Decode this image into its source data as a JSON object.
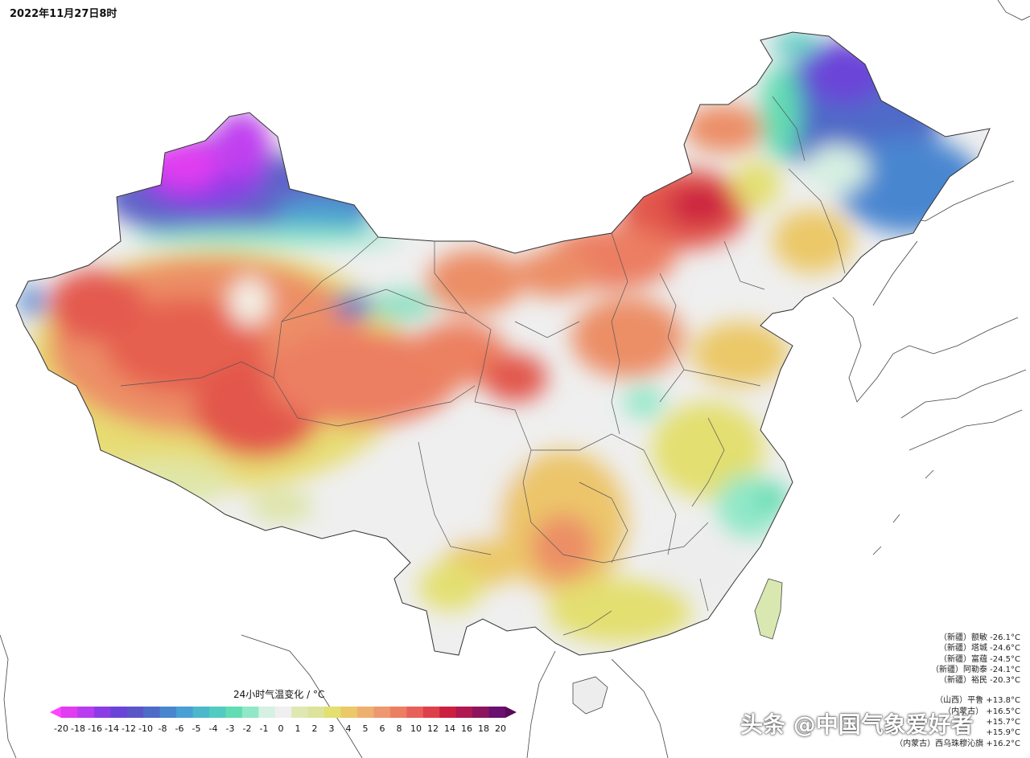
{
  "title": "2022年11月27日8时",
  "legend": {
    "title": "24小时气温变化 / °C",
    "ticks": [
      "-20",
      "-18",
      "-16",
      "-14",
      "-12",
      "-10",
      "-8",
      "-6",
      "-5",
      "-4",
      "-3",
      "-2",
      "-1",
      "0",
      "1",
      "2",
      "3",
      "4",
      "5",
      "6",
      "8",
      "10",
      "12",
      "14",
      "16",
      "18",
      "20"
    ],
    "colors": [
      "#e03cf0",
      "#b83cf0",
      "#8c3ce6",
      "#6a44d8",
      "#5a56c8",
      "#4f6bc8",
      "#4a86d0",
      "#48a0d4",
      "#4cb8cc",
      "#52cbc0",
      "#62dcb2",
      "#90e8c8",
      "#d6f0e2",
      "#efefef",
      "#dfe8b0",
      "#dde39a",
      "#e3df70",
      "#ebc868",
      "#eeb070",
      "#ee9870",
      "#ec7e62",
      "#e8605a",
      "#de404a",
      "#cc2040",
      "#b01850",
      "#8e1460",
      "#6a1070"
    ],
    "left_arrow_color": "#ff44ff",
    "right_arrow_color": "#5a0a58"
  },
  "stations": {
    "cold": [
      {
        "region": "（新疆）",
        "name": "额敏",
        "value": "-26.1°C"
      },
      {
        "region": "（新疆）",
        "name": "塔城",
        "value": "-24.6°C"
      },
      {
        "region": "（新疆）",
        "name": "富蕴",
        "value": "-24.5°C"
      },
      {
        "region": "（新疆）",
        "name": "阿勒泰",
        "value": "-24.1°C"
      },
      {
        "region": "（新疆）",
        "name": "裕民",
        "value": "-20.3°C"
      }
    ],
    "warm": [
      {
        "region": "（山西）",
        "name": "平鲁",
        "value": "+13.8°C"
      },
      {
        "region": "（内蒙古）",
        "name": "",
        "value": "+16.5°C"
      },
      {
        "region": "",
        "name": "",
        "value": "+15.7°C"
      },
      {
        "region": "",
        "name": "",
        "value": "+15.9°C"
      },
      {
        "region": "（内蒙古）",
        "name": "西乌珠穆沁旗",
        "value": "+16.2°C"
      }
    ]
  },
  "watermark": "头条 @中国气象爱好者"
}
